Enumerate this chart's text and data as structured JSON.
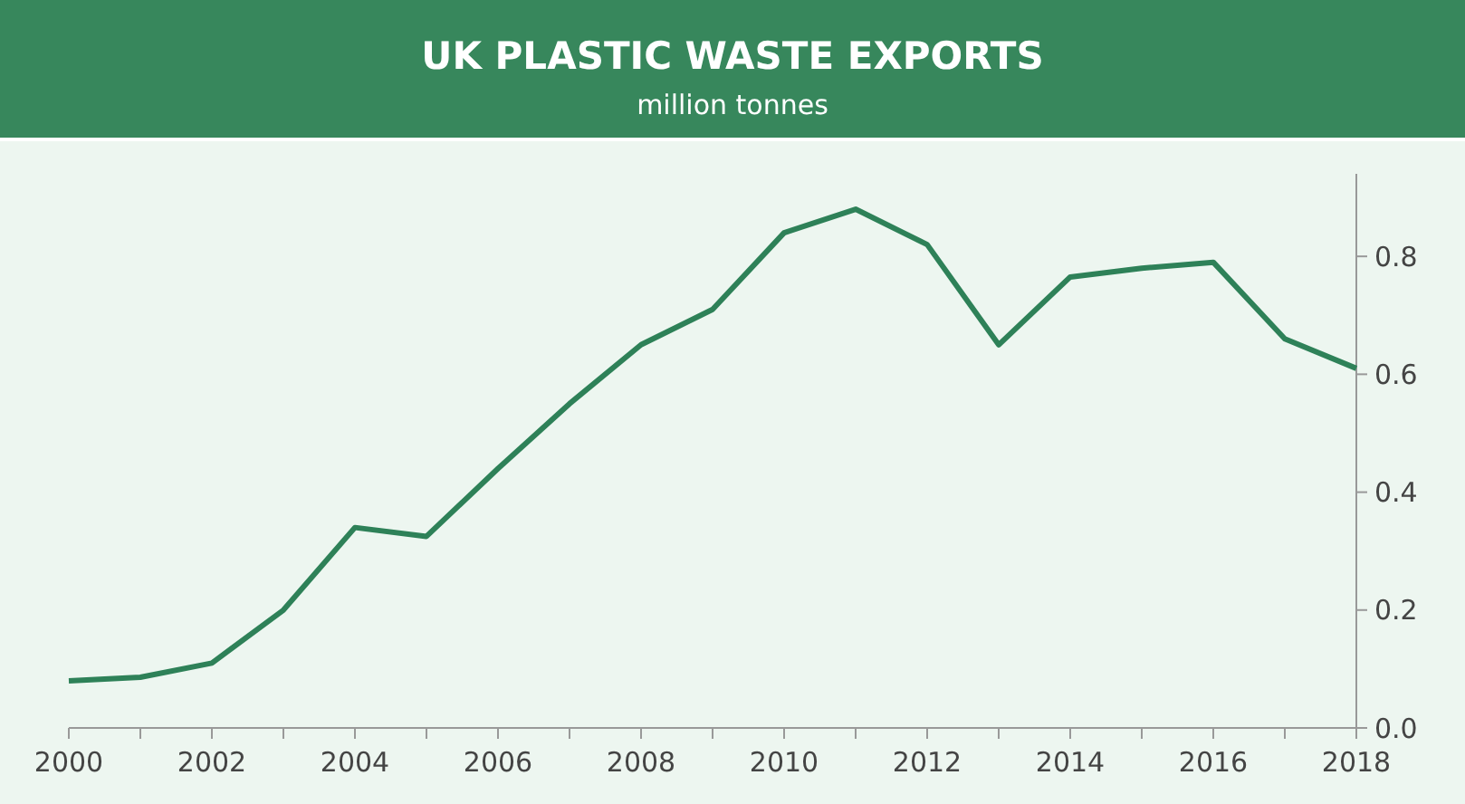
{
  "chart_data": {
    "type": "line",
    "title": "UK PLASTIC WASTE EXPORTS",
    "subtitle": "million tonnes",
    "x": [
      2000,
      2001,
      2002,
      2003,
      2004,
      2005,
      2006,
      2007,
      2008,
      2009,
      2010,
      2011,
      2012,
      2013,
      2014,
      2015,
      2016,
      2017,
      2018
    ],
    "series": [
      {
        "color": "#2e8158",
        "values": [
          0.08,
          0.086,
          0.11,
          0.2,
          0.34,
          0.325,
          0.44,
          0.55,
          0.65,
          0.71,
          0.84,
          0.88,
          0.82,
          0.65,
          0.765,
          0.78,
          0.79,
          0.66,
          0.61
        ]
      }
    ],
    "xlim": [
      2000,
      2018
    ],
    "xticks": [
      2000,
      {
        "value": 2001,
        "label": null
      },
      2002,
      {
        "value": 2003,
        "label": null
      },
      2004,
      {
        "value": 2005,
        "label": null
      },
      2006,
      {
        "value": 2007,
        "label": null
      },
      2008,
      {
        "value": 2009,
        "label": null
      },
      2010,
      {
        "value": 2011,
        "label": null
      },
      2012,
      {
        "value": 2013,
        "label": null
      },
      2014,
      {
        "value": 2015,
        "label": null
      },
      2016,
      {
        "value": 2017,
        "label": null
      },
      2018
    ],
    "ylim": [
      0,
      0.94
    ],
    "yticks": [
      {
        "value": 0,
        "label": "0.0"
      },
      0.2,
      0.4,
      0.6,
      0.8
    ],
    "grid": false,
    "marker": "none",
    "line_style": "solid"
  }
}
